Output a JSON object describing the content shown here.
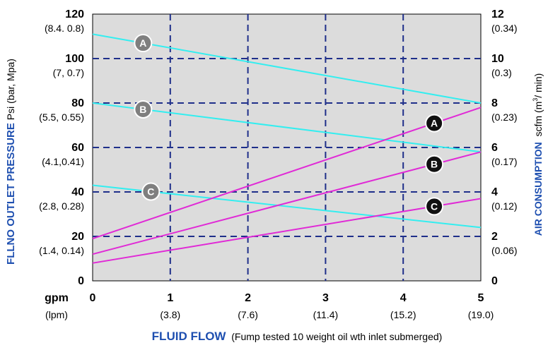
{
  "colors": {
    "plot_background": "#dcdcdc",
    "grid": "#1f2f8a",
    "pressure_line": "#33eef0",
    "air_line": "#e02ad6",
    "title_blue": "#1e4fb0",
    "pressure_badge": "#7f7f7f",
    "air_badge": "#111111"
  },
  "chart_data": {
    "type": "line",
    "x": [
      0,
      5
    ],
    "xlim": [
      0,
      5
    ],
    "ylim_left": [
      0,
      120
    ],
    "ylim_right": [
      0,
      12
    ],
    "grid": true,
    "x_axis": {
      "unit_primary": "gpm",
      "unit_secondary": "(lpm)",
      "ticks": [
        {
          "value": 0,
          "label": "0",
          "sub": ""
        },
        {
          "value": 1,
          "label": "1",
          "sub": "(3.8)"
        },
        {
          "value": 2,
          "label": "2",
          "sub": "(7.6)"
        },
        {
          "value": 3,
          "label": "3",
          "sub": "(11.4)"
        },
        {
          "value": 4,
          "label": "4",
          "sub": "(15.2)"
        },
        {
          "value": 5,
          "label": "5",
          "sub": "(19.0)"
        }
      ],
      "title_strong": "FLUID FLOW",
      "title_plain": "(Fump tested 10 weight oil wth inlet submerged)"
    },
    "y_left": {
      "title_strong": "FLLNO OUTLET PRESSURE",
      "title_plain": "Psi (bar, Mpa)",
      "ticks": [
        {
          "value": 0,
          "label": "0",
          "sub": ""
        },
        {
          "value": 20,
          "label": "20",
          "sub": "(1.4, 0.14)"
        },
        {
          "value": 40,
          "label": "40",
          "sub": "(2.8, 0.28)"
        },
        {
          "value": 60,
          "label": "60",
          "sub": "(4.1,0.41)"
        },
        {
          "value": 80,
          "label": "80",
          "sub": "(5.5, 0.55)"
        },
        {
          "value": 100,
          "label": "100",
          "sub": "(7, 0.7)"
        },
        {
          "value": 120,
          "label": "120",
          "sub": "(8.4. 0.8)"
        }
      ]
    },
    "y_right": {
      "title_strong": "AIR CONSUMPTION",
      "title_plain": "scfm (m",
      "title_sup": "3",
      "title_end": "/ min)",
      "ticks": [
        {
          "value": 0,
          "label": "0",
          "sub": ""
        },
        {
          "value": 2,
          "label": "2",
          "sub": "(0.06)"
        },
        {
          "value": 4,
          "label": "4",
          "sub": "(0.12)"
        },
        {
          "value": 6,
          "label": "6",
          "sub": "(0.17)"
        },
        {
          "value": 8,
          "label": "8",
          "sub": "(0.23)"
        },
        {
          "value": 10,
          "label": "10",
          "sub": "(0.3)"
        },
        {
          "value": 12,
          "label": "12",
          "sub": "(0.34)"
        }
      ]
    },
    "series": [
      {
        "label": "A",
        "kind": "pressure",
        "axis": "left",
        "x": [
          0,
          5
        ],
        "y": [
          111,
          80
        ],
        "label_at": 0.65
      },
      {
        "label": "B",
        "kind": "pressure",
        "axis": "left",
        "x": [
          0,
          5
        ],
        "y": [
          80,
          58
        ],
        "label_at": 0.65
      },
      {
        "label": "C",
        "kind": "pressure",
        "axis": "left",
        "x": [
          0,
          5
        ],
        "y": [
          43,
          24
        ],
        "label_at": 0.75
      },
      {
        "label": "A",
        "kind": "air",
        "axis": "right",
        "x": [
          0,
          5
        ],
        "y": [
          1.9,
          7.8
        ],
        "label_at": 4.4
      },
      {
        "label": "B",
        "kind": "air",
        "axis": "right",
        "x": [
          0,
          5
        ],
        "y": [
          1.2,
          5.8
        ],
        "label_at": 4.4
      },
      {
        "label": "C",
        "kind": "air",
        "axis": "right",
        "x": [
          0,
          5
        ],
        "y": [
          0.8,
          3.7
        ],
        "label_at": 4.4
      }
    ]
  }
}
